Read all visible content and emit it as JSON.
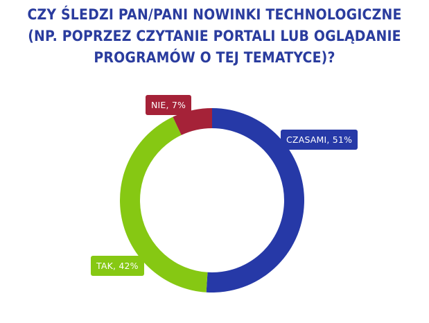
{
  "title": {
    "line1": "CZY ŚLEDZI PAN/PANI NOWINKI TECHNOLOGICZNE",
    "line2": "(NP. POPRZEZ CZYTANIE PORTALI LUB OGLĄDANIE",
    "line3": "PROGRAMÓW O TEJ TEMATYCE)?"
  },
  "colors": {
    "title": "#2a3c9e",
    "czasami": "#2639a7",
    "tak": "#86c813",
    "nie": "#a52238",
    "background": "#ffffff"
  },
  "chart_data": {
    "type": "pie",
    "variant": "donut",
    "title": "CZY ŚLEDZI PAN/PANI NOWINKI TECHNOLOGICZNE (NP. POPRZEZ CZYTANIE PORTALI LUB OGLĄDANIE PROGRAMÓW O TEJ TEMATYCE)?",
    "unit": "%",
    "slices": [
      {
        "key": "czasami",
        "label": "CZASAMI, 51%",
        "value": 51,
        "color": "#2639a7"
      },
      {
        "key": "tak",
        "label": "TAK, 42%",
        "value": 42,
        "color": "#86c813"
      },
      {
        "key": "nie",
        "label": "NIE, 7%",
        "value": 7,
        "color": "#a52238"
      }
    ]
  }
}
